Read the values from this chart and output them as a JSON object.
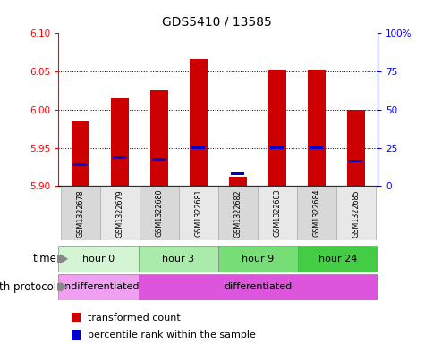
{
  "title": "GDS5410 / 13585",
  "samples": [
    "GSM1322678",
    "GSM1322679",
    "GSM1322680",
    "GSM1322681",
    "GSM1322682",
    "GSM1322683",
    "GSM1322684",
    "GSM1322685"
  ],
  "red_values": [
    5.985,
    6.015,
    6.025,
    6.067,
    5.912,
    6.052,
    6.053,
    6.0
  ],
  "blue_values": [
    5.928,
    5.937,
    5.935,
    5.95,
    5.916,
    5.95,
    5.95,
    5.933
  ],
  "ylim_low": 5.9,
  "ylim_high": 6.1,
  "yticks_left": [
    5.9,
    5.95,
    6.0,
    6.05,
    6.1
  ],
  "yticks_right_pct": [
    0,
    25,
    50,
    75,
    100
  ],
  "time_groups": [
    {
      "label": "hour 0",
      "start": 0,
      "end": 2,
      "color": "#d4f5d4"
    },
    {
      "label": "hour 3",
      "start": 2,
      "end": 4,
      "color": "#aaeaaa"
    },
    {
      "label": "hour 9",
      "start": 4,
      "end": 6,
      "color": "#77dd77"
    },
    {
      "label": "hour 24",
      "start": 6,
      "end": 8,
      "color": "#44cc44"
    }
  ],
  "growth_groups": [
    {
      "label": "undifferentiated",
      "start": 0,
      "end": 2,
      "color": "#f0a0f0"
    },
    {
      "label": "differentiated",
      "start": 2,
      "end": 8,
      "color": "#dd55dd"
    }
  ],
  "bar_color": "#cc0000",
  "blue_color": "#0000cc",
  "bar_width": 0.45,
  "blue_bar_width": 0.35,
  "blue_bar_height": 0.003,
  "grid_yticks": [
    5.95,
    6.0,
    6.05
  ],
  "sample_bg_color": "#d8d8d8",
  "sample_alt_color": "#e8e8e8",
  "legend_red": "transformed count",
  "legend_blue": "percentile rank within the sample",
  "time_label": "time",
  "growth_label": "growth protocol",
  "arrow_color": "#888888"
}
